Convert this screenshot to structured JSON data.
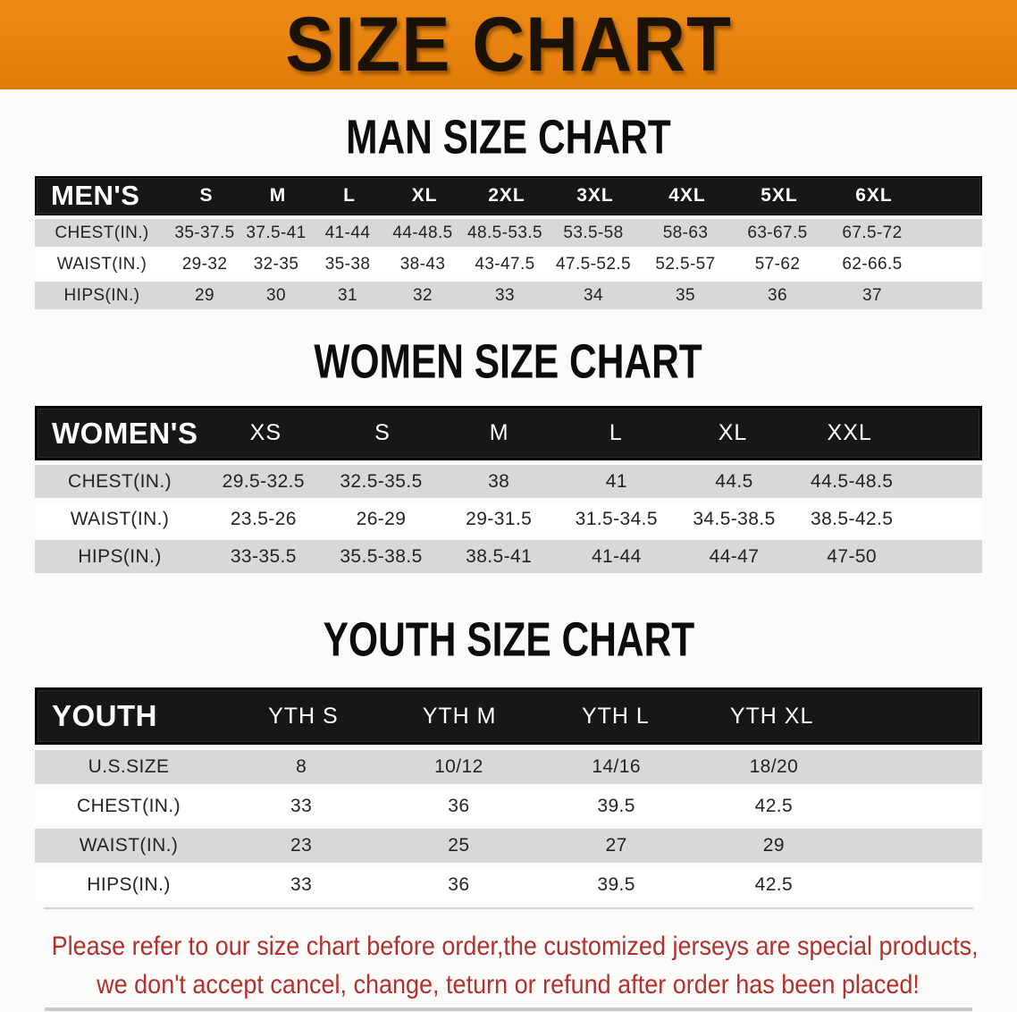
{
  "banner": {
    "title": "SIZE CHART",
    "bg_color": "#e8820f"
  },
  "men": {
    "heading": "MAN SIZE CHART",
    "header": [
      "MEN'S",
      "S",
      "M",
      "L",
      "XL",
      "2XL",
      "3XL",
      "4XL",
      "5XL",
      "6XL"
    ],
    "rows": [
      {
        "label": "CHEST(IN.)",
        "values": [
          "35-37.5",
          "37.5-41",
          "41-44",
          "44-48.5",
          "48.5-53.5",
          "53.5-58",
          "58-63",
          "63-67.5",
          "67.5-72"
        ]
      },
      {
        "label": "WAIST(IN.)",
        "values": [
          "29-32",
          "32-35",
          "35-38",
          "38-43",
          "43-47.5",
          "47.5-52.5",
          "52.5-57",
          "57-62",
          "62-66.5"
        ]
      },
      {
        "label": "HIPS(IN.)",
        "values": [
          "29",
          "30",
          "31",
          "32",
          "33",
          "34",
          "35",
          "36",
          "37"
        ]
      }
    ]
  },
  "women": {
    "heading": "WOMEN SIZE CHART",
    "header": [
      "WOMEN'S",
      "XS",
      "S",
      "M",
      "L",
      "XL",
      "XXL"
    ],
    "rows": [
      {
        "label": "CHEST(IN.)",
        "values": [
          "29.5-32.5",
          "32.5-35.5",
          "38",
          "41",
          "44.5",
          "44.5-48.5"
        ]
      },
      {
        "label": "WAIST(IN.)",
        "values": [
          "23.5-26",
          "26-29",
          "29-31.5",
          "31.5-34.5",
          "34.5-38.5",
          "38.5-42.5"
        ]
      },
      {
        "label": "HIPS(IN.)",
        "values": [
          "33-35.5",
          "35.5-38.5",
          "38.5-41",
          "41-44",
          "44-47",
          "47-50"
        ]
      }
    ]
  },
  "youth": {
    "heading": "YOUTH SIZE CHART",
    "header": [
      "YOUTH",
      "YTH S",
      "YTH M",
      "YTH L",
      "YTH XL"
    ],
    "rows": [
      {
        "label": "U.S.SIZE",
        "values": [
          "8",
          "10/12",
          "14/16",
          "18/20"
        ]
      },
      {
        "label": "CHEST(IN.)",
        "values": [
          "33",
          "36",
          "39.5",
          "42.5"
        ]
      },
      {
        "label": "WAIST(IN.)",
        "values": [
          "23",
          "25",
          "27",
          "29"
        ]
      },
      {
        "label": "HIPS(IN.)",
        "values": [
          "33",
          "36",
          "39.5",
          "42.5"
        ]
      }
    ]
  },
  "disclaimer": {
    "line1": "Please refer to our size chart before order,the customized jerseys are special products,",
    "line2": "we don't accept cancel, change, teturn or refund after order has been placed!",
    "color": "#b2302d"
  },
  "colors": {
    "header_bar": "#171717",
    "row_gray": "#d8d8d8",
    "row_white": "#ffffff"
  }
}
